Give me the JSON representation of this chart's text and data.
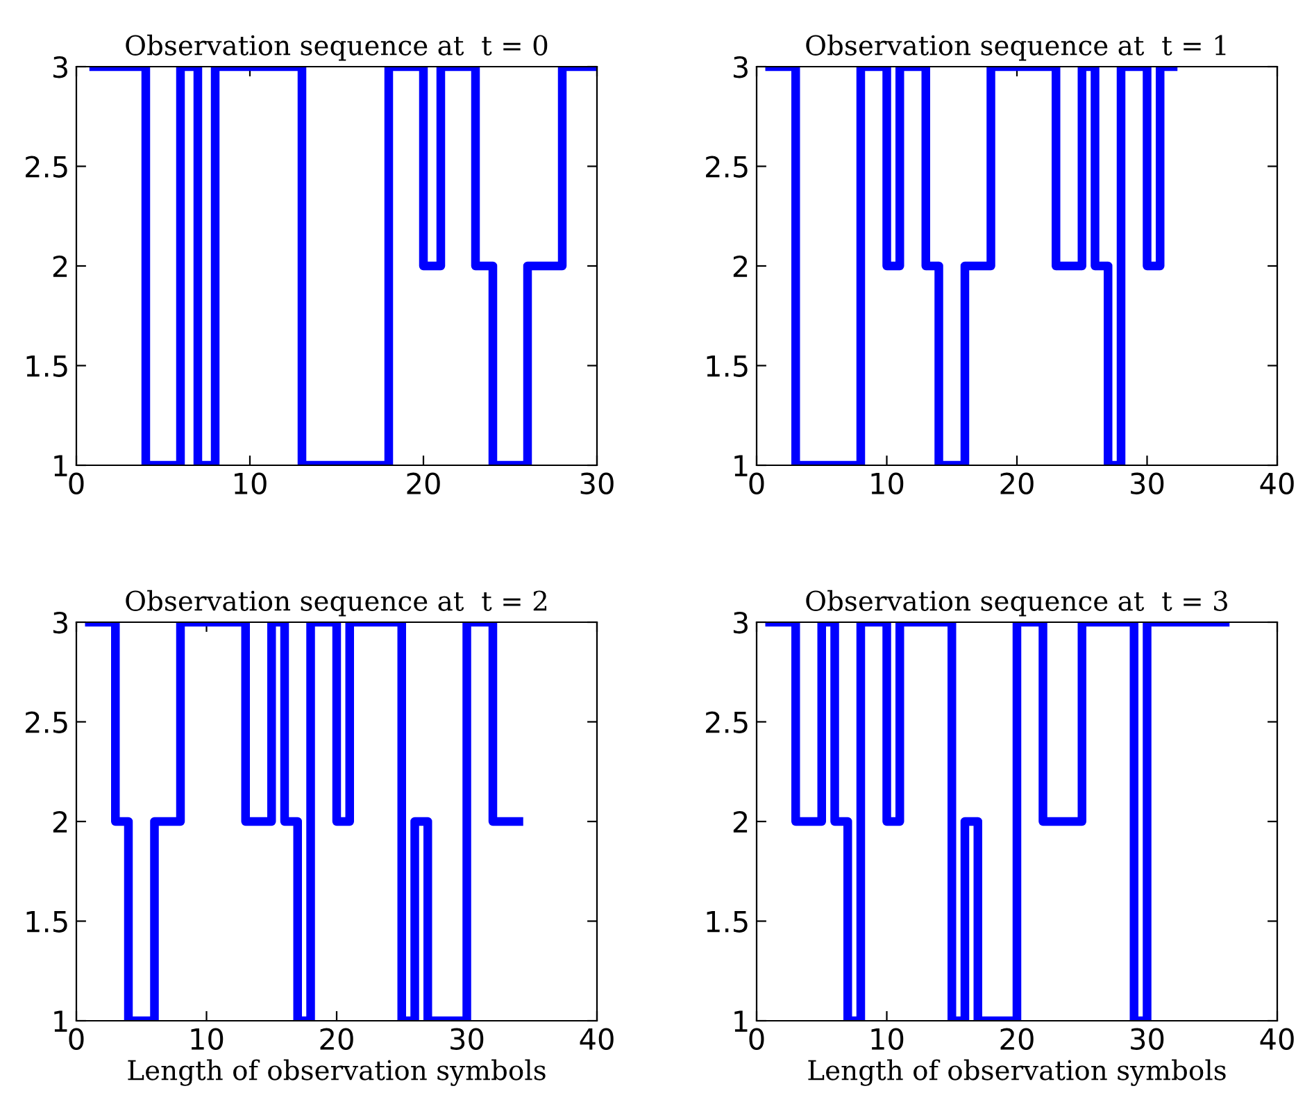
{
  "chart_data": [
    {
      "type": "step",
      "title": "Observation sequence at  t = 0",
      "x": [
        1,
        2,
        3,
        4,
        5,
        6,
        7,
        8,
        9,
        10,
        11,
        12,
        13,
        14,
        15,
        16,
        17,
        18,
        19,
        20,
        21,
        22,
        23,
        24,
        25,
        26,
        27,
        28,
        29,
        30
      ],
      "series": [
        {
          "color": "#0000ff",
          "values": [
            3,
            3,
            3,
            1,
            1,
            3,
            1,
            3,
            3,
            3,
            3,
            3,
            1,
            1,
            1,
            1,
            1,
            3,
            3,
            2,
            3,
            3,
            2,
            1,
            1,
            2,
            2,
            3,
            3,
            3
          ]
        }
      ],
      "xlim": [
        0,
        30
      ],
      "xticks": [
        0,
        10,
        20,
        30
      ],
      "ylim": [
        1,
        3
      ],
      "yticks": [
        1,
        1.5,
        2,
        2.5,
        3
      ]
    },
    {
      "type": "step",
      "title": "Observation sequence at  t = 1",
      "x": [
        1,
        2,
        3,
        4,
        5,
        6,
        7,
        8,
        9,
        10,
        11,
        12,
        13,
        14,
        15,
        16,
        17,
        18,
        19,
        20,
        21,
        22,
        23,
        24,
        25,
        26,
        27,
        28,
        29,
        30,
        31,
        32
      ],
      "series": [
        {
          "color": "#0000ff",
          "values": [
            3,
            3,
            1,
            1,
            1,
            1,
            1,
            3,
            3,
            2,
            3,
            3,
            2,
            1,
            1,
            2,
            2,
            3,
            3,
            3,
            3,
            3,
            2,
            2,
            3,
            2,
            1,
            3,
            3,
            2,
            3,
            3
          ]
        }
      ],
      "xlim": [
        0,
        40
      ],
      "xticks": [
        0,
        10,
        20,
        30,
        40
      ],
      "ylim": [
        1,
        3
      ],
      "yticks": [
        1,
        1.5,
        2,
        2.5,
        3
      ]
    },
    {
      "type": "step",
      "title": "Observation sequence at  t = 2",
      "xlabel": "Length of observation symbols",
      "x": [
        1,
        2,
        3,
        4,
        5,
        6,
        7,
        8,
        9,
        10,
        11,
        12,
        13,
        14,
        15,
        16,
        17,
        18,
        19,
        20,
        21,
        22,
        23,
        24,
        25,
        26,
        27,
        28,
        29,
        30,
        31,
        32,
        33,
        34
      ],
      "series": [
        {
          "color": "#0000ff",
          "values": [
            3,
            3,
            2,
            1,
            1,
            2,
            2,
            3,
            3,
            3,
            3,
            3,
            2,
            2,
            3,
            2,
            1,
            3,
            3,
            2,
            3,
            3,
            3,
            3,
            1,
            2,
            1,
            1,
            1,
            3,
            3,
            2,
            2,
            2
          ]
        }
      ],
      "xlim": [
        0,
        40
      ],
      "xticks": [
        0,
        10,
        20,
        30,
        40
      ],
      "ylim": [
        1,
        3
      ],
      "yticks": [
        1,
        1.5,
        2,
        2.5,
        3
      ]
    },
    {
      "type": "step",
      "title": "Observation sequence at  t = 3",
      "xlabel": "Length of observation symbols",
      "x": [
        1,
        2,
        3,
        4,
        5,
        6,
        7,
        8,
        9,
        10,
        11,
        12,
        13,
        14,
        15,
        16,
        17,
        18,
        19,
        20,
        21,
        22,
        23,
        24,
        25,
        26,
        27,
        28,
        29,
        30,
        31,
        32,
        33,
        34,
        35,
        36
      ],
      "series": [
        {
          "color": "#0000ff",
          "values": [
            3,
            3,
            2,
            2,
            3,
            2,
            1,
            3,
            3,
            2,
            3,
            3,
            3,
            3,
            1,
            2,
            1,
            1,
            1,
            3,
            3,
            2,
            2,
            2,
            3,
            3,
            3,
            3,
            1,
            3,
            3,
            3,
            3,
            3,
            3,
            3
          ]
        }
      ],
      "xlim": [
        0,
        40
      ],
      "xticks": [
        0,
        10,
        20,
        30,
        40
      ],
      "ylim": [
        1,
        3
      ],
      "yticks": [
        1,
        1.5,
        2,
        2.5,
        3
      ]
    }
  ]
}
